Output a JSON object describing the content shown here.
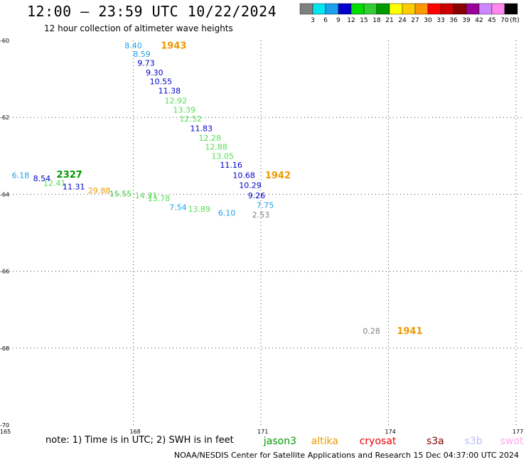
{
  "header": {
    "title": "12:00 – 23:59 UTC 10/22/2024",
    "subtitle": "12 hour collection of altimeter wave heights"
  },
  "colorbar": {
    "unit": "(ft)",
    "levels": [
      {
        "label": "3",
        "color": "#808080"
      },
      {
        "label": "6",
        "color": "#00e5ee"
      },
      {
        "label": "9",
        "color": "#1ca0ee"
      },
      {
        "label": "12",
        "color": "#0000cc"
      },
      {
        "label": "15",
        "color": "#00dd00"
      },
      {
        "label": "18",
        "color": "#33cc33"
      },
      {
        "label": "21",
        "color": "#009900"
      },
      {
        "label": "24",
        "color": "#ffff00"
      },
      {
        "label": "27",
        "color": "#ffcc00"
      },
      {
        "label": "30",
        "color": "#ff9900"
      },
      {
        "label": "33",
        "color": "#ff0000"
      },
      {
        "label": "36",
        "color": "#cc0000"
      },
      {
        "label": "39",
        "color": "#880000"
      },
      {
        "label": "42",
        "color": "#990099"
      },
      {
        "label": "45",
        "color": "#cc88ff"
      },
      {
        "label": "70",
        "color": "#ff88ee"
      },
      {
        "label": "",
        "color": "#000000"
      }
    ]
  },
  "chart_data": {
    "type": "scatter",
    "xlim": [
      165,
      177.2
    ],
    "ylim": [
      -60,
      -70
    ],
    "x_ticks": [
      165,
      168,
      171,
      174,
      177
    ],
    "y_ticks": [
      -60,
      -62,
      -64,
      -66,
      -68,
      -70
    ],
    "grid": true,
    "points": [
      {
        "lon": 168.0,
        "lat": -60.15,
        "v": "8.40",
        "c": "#1ca0ee"
      },
      {
        "lon": 168.2,
        "lat": -60.37,
        "v": "8.59",
        "c": "#1ca0ee"
      },
      {
        "lon": 168.3,
        "lat": -60.6,
        "v": "9.73",
        "c": "#0000cc"
      },
      {
        "lon": 168.5,
        "lat": -60.85,
        "v": "9.30",
        "c": "#0000cc"
      },
      {
        "lon": 168.65,
        "lat": -61.08,
        "v": "10.55",
        "c": "#0000cc"
      },
      {
        "lon": 168.85,
        "lat": -61.32,
        "v": "11.38",
        "c": "#0000cc"
      },
      {
        "lon": 169.0,
        "lat": -61.58,
        "v": "12.92",
        "c": "#55dd55"
      },
      {
        "lon": 169.2,
        "lat": -61.82,
        "v": "13.39",
        "c": "#55dd55"
      },
      {
        "lon": 169.35,
        "lat": -62.05,
        "v": "12.52",
        "c": "#55dd55"
      },
      {
        "lon": 169.6,
        "lat": -62.3,
        "v": "11.83",
        "c": "#0000cc"
      },
      {
        "lon": 169.8,
        "lat": -62.55,
        "v": "12.28",
        "c": "#55dd55"
      },
      {
        "lon": 169.95,
        "lat": -62.78,
        "v": "12.88",
        "c": "#55dd55"
      },
      {
        "lon": 170.1,
        "lat": -63.02,
        "v": "13.05",
        "c": "#55dd55"
      },
      {
        "lon": 170.3,
        "lat": -63.25,
        "v": "11.16",
        "c": "#0000cc"
      },
      {
        "lon": 170.6,
        "lat": -63.52,
        "v": "10.68",
        "c": "#0000cc"
      },
      {
        "lon": 170.75,
        "lat": -63.78,
        "v": "10.29",
        "c": "#0000cc"
      },
      {
        "lon": 170.9,
        "lat": -64.05,
        "v": "9.26",
        "c": "#0000cc"
      },
      {
        "lon": 171.1,
        "lat": -64.3,
        "v": "7.75",
        "c": "#1ca0ee"
      },
      {
        "lon": 171.0,
        "lat": -64.55,
        "v": "2.53",
        "c": "#808080"
      },
      {
        "lon": 170.2,
        "lat": -64.5,
        "v": "6.10",
        "c": "#1ca0ee"
      },
      {
        "lon": 169.55,
        "lat": -64.4,
        "v": "13.89",
        "c": "#55dd55"
      },
      {
        "lon": 169.05,
        "lat": -64.35,
        "v": "7.54",
        "c": "#1ca0ee"
      },
      {
        "lon": 165.35,
        "lat": -63.52,
        "v": "6.18",
        "c": "#1ca0ee"
      },
      {
        "lon": 165.85,
        "lat": -63.6,
        "v": "8.54",
        "c": "#0000cc"
      },
      {
        "lon": 166.15,
        "lat": -63.72,
        "v": "12.41",
        "c": "#55dd55"
      },
      {
        "lon": 166.6,
        "lat": -63.82,
        "v": "11.31",
        "c": "#0000cc"
      },
      {
        "lon": 167.2,
        "lat": -63.92,
        "v": "29.88",
        "c": "#ee9900"
      },
      {
        "lon": 167.7,
        "lat": -64.0,
        "v": "15.55",
        "c": "#33cc33"
      },
      {
        "lon": 168.3,
        "lat": -64.05,
        "v": "14.31",
        "c": "#55dd55"
      },
      {
        "lon": 168.6,
        "lat": -64.12,
        "v": "13.78",
        "c": "#55dd55"
      },
      {
        "lon": 173.6,
        "lat": -67.57,
        "v": "0.28",
        "c": "#808080"
      }
    ],
    "pass_labels": [
      {
        "lon": 168.95,
        "lat": -60.15,
        "v": "1943",
        "c": "#ee9900"
      },
      {
        "lon": 171.4,
        "lat": -63.52,
        "v": "1942",
        "c": "#ee9900"
      },
      {
        "lon": 166.5,
        "lat": -63.5,
        "v": "2327",
        "c": "#009900"
      },
      {
        "lon": 174.5,
        "lat": -67.57,
        "v": "1941",
        "c": "#ee9900"
      }
    ]
  },
  "note": "note: 1) Time is in UTC; 2) SWH is in feet",
  "satellites": [
    {
      "name": "jason3",
      "color": "#009900",
      "lon": 171.45
    },
    {
      "name": "altika",
      "color": "#ee9900",
      "lon": 172.5
    },
    {
      "name": "cryosat",
      "color": "#ee0000",
      "lon": 173.75
    },
    {
      "name": "s3a",
      "color": "#880000",
      "lon": 175.1
    },
    {
      "name": "s3b",
      "color": "#bbbbff",
      "lon": 176.0
    },
    {
      "name": "swot",
      "color": "#ffaaee",
      "lon": 176.9
    }
  ],
  "footer": "NOAA/NESDIS Center for Satellite Applications and Research    15 Dec 04:37:00 UTC 2024"
}
